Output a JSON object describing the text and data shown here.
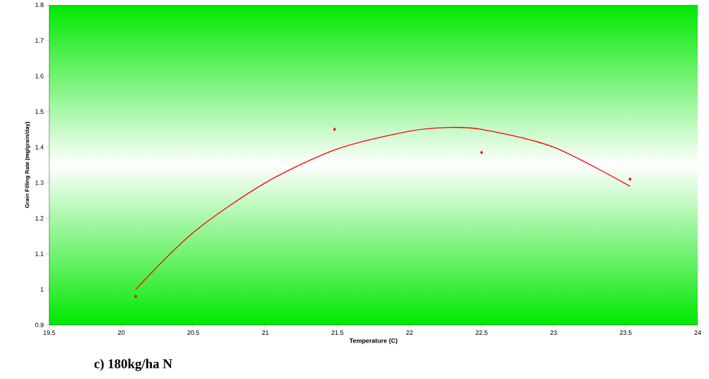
{
  "chart_data": {
    "type": "scatter",
    "xlabel": "Temperature (C)",
    "ylabel": "Grain Filling Rate (mg/grain/day)",
    "annotations": [
      "c) 180kg/ha N"
    ],
    "series": [
      {
        "color": "#ff0000",
        "marker": "diamond",
        "x": [
          20.1,
          21.48,
          22.5,
          23.53
        ],
        "values": [
          0.98,
          1.45,
          1.385,
          1.31
        ]
      },
      {
        "type": "line",
        "color": "#ff0000",
        "marker": "none",
        "x": [
          20.1,
          20.5,
          21,
          21.5,
          22,
          22.25,
          22.5,
          23,
          23.53
        ],
        "values": [
          1.0,
          1.16,
          1.3,
          1.395,
          1.445,
          1.455,
          1.45,
          1.4,
          1.29
        ]
      }
    ],
    "xlim": [
      19.5,
      24
    ],
    "ylim": [
      0.9,
      1.8
    ],
    "xticks": [
      19.5,
      20,
      20.5,
      21,
      21.5,
      22,
      22.5,
      23,
      23.5,
      24
    ],
    "yticks": [
      0.9,
      1,
      1.1,
      1.2,
      1.3,
      1.4,
      1.5,
      1.6,
      1.7,
      1.8
    ],
    "grid": false
  }
}
